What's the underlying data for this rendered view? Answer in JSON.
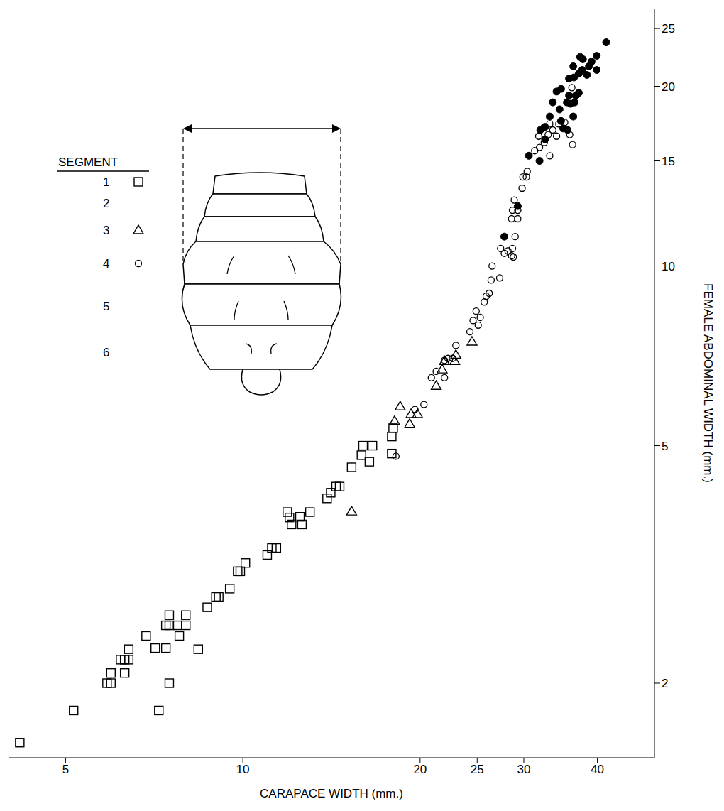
{
  "chart_data": {
    "type": "scatter",
    "log": true,
    "xlabel": "CARAPACE WIDTH (mm.)",
    "ylabel": "FEMALE ABDOMINAL WIDTH (mm.)",
    "xlim": [
      4,
      50
    ],
    "xticks": [
      5,
      10,
      20,
      25,
      30,
      40
    ],
    "ylim": [
      1.5,
      27
    ],
    "yticks": [
      2,
      5,
      10,
      15,
      20,
      25
    ],
    "grid": false,
    "inset": {
      "title": "SEGMENT",
      "segments": [
        "1",
        "2",
        "3",
        "4",
        "5",
        "6"
      ]
    },
    "series": [
      {
        "name": "1",
        "marker": "open_square",
        "color": "#000000",
        "x": [
          4.18,
          5.16,
          5.88,
          5.97,
          5.97,
          6.2,
          6.3,
          6.4,
          6.3,
          6.4,
          6.85,
          7.1,
          7.4,
          7.2,
          7.5,
          7.4,
          7.5,
          7.75,
          8.0,
          7.5,
          8.0,
          7.8,
          8.4,
          8.7,
          9.0,
          9.1,
          9.5,
          9.8,
          9.9,
          10.1,
          11.0,
          11.2,
          11.4,
          11.9,
          12.0,
          12.1,
          12.5,
          12.6,
          13.0,
          13.9,
          14.1,
          14.4,
          14.6,
          15.3,
          15.9,
          16.0,
          16.4,
          16.6,
          17.9,
          17.9,
          18.0
        ],
        "y": [
          1.59,
          1.8,
          2.0,
          2.0,
          2.08,
          2.19,
          2.19,
          2.19,
          2.08,
          2.28,
          2.4,
          2.29,
          2.29,
          1.8,
          2.0,
          2.5,
          2.5,
          2.5,
          2.5,
          2.6,
          2.6,
          2.4,
          2.28,
          2.68,
          2.79,
          2.79,
          2.88,
          3.08,
          3.08,
          3.18,
          3.28,
          3.37,
          3.37,
          3.87,
          3.79,
          3.69,
          3.8,
          3.69,
          3.87,
          4.08,
          4.17,
          4.27,
          4.27,
          4.6,
          4.82,
          5.0,
          4.7,
          5.0,
          4.85,
          5.18,
          5.35
        ]
      },
      {
        "name": "3",
        "marker": "open_triangle",
        "color": "#000000",
        "x": [
          15.3,
          18.5,
          18.1,
          19.2,
          19.3,
          19.8,
          21.8,
          22.0,
          21.3,
          22.9,
          23.0,
          24.5
        ],
        "y": [
          3.88,
          5.82,
          5.5,
          5.44,
          5.65,
          5.65,
          6.71,
          6.93,
          6.3,
          6.93,
          7.1,
          7.47
        ]
      },
      {
        "name": "4",
        "marker": "open_circle",
        "color": "#000000",
        "x": [
          18.2,
          19.6,
          20.3,
          20.9,
          21.3,
          22.0,
          22.3,
          22.7,
          22.0,
          23.0,
          24.3,
          24.6,
          24.9,
          25.3,
          25.1,
          25.7,
          25.9,
          26.2,
          26.4,
          26.5,
          27.3,
          27.4,
          27.8,
          28.2,
          28.6,
          28.8,
          28.7,
          29.0,
          28.6,
          28.7,
          29.3,
          29.3,
          28.9,
          29.8,
          29.9,
          30.3,
          30.4,
          31.3,
          31.9,
          32.5,
          33.0,
          32.5,
          33.2,
          33.6,
          34.1,
          34.4,
          35.2,
          35.9,
          36.3,
          36.7,
          36.2,
          31.8,
          33.2
        ],
        "y": [
          4.8,
          5.75,
          5.86,
          6.5,
          6.66,
          6.95,
          7.0,
          7.0,
          6.5,
          7.36,
          7.76,
          8.1,
          8.4,
          8.2,
          7.96,
          8.7,
          8.9,
          9.0,
          9.47,
          10.0,
          9.55,
          10.7,
          10.5,
          10.6,
          10.4,
          10.35,
          10.7,
          11.2,
          12.0,
          12.4,
          12.0,
          12.4,
          12.9,
          13.5,
          14.1,
          14.1,
          14.4,
          15.6,
          15.8,
          16.1,
          16.6,
          17.1,
          17.3,
          16.9,
          16.5,
          17.3,
          17.4,
          16.6,
          15.97,
          19.3,
          19.9,
          16.5,
          15.3
        ]
      },
      {
        "marker": "filled_circle",
        "color": "#000000",
        "x": [
          27.8,
          29.3,
          30.6,
          31.9,
          32.0,
          32.6,
          33.2,
          32.6,
          33.6,
          34.5,
          34.7,
          35.0,
          35.6,
          35.5,
          35.8,
          36.0,
          36.4,
          36.6,
          36.8,
          37.2,
          35.8,
          36.5,
          37.2,
          37.7,
          38.4,
          38.7,
          36.4,
          37.4,
          37.8,
          39.1,
          39.9,
          41.4,
          39.9,
          34.1,
          34.7
        ],
        "y": [
          11.2,
          12.6,
          15.3,
          15.0,
          16.9,
          17.1,
          17.8,
          16.3,
          18.8,
          18.3,
          17.5,
          17.0,
          16.9,
          18.8,
          19.3,
          18.7,
          17.8,
          18.8,
          19.3,
          19.5,
          20.6,
          20.7,
          21.0,
          21.3,
          20.9,
          21.6,
          21.6,
          22.4,
          22.2,
          22.0,
          21.3,
          23.7,
          22.5,
          19.6,
          19.8
        ]
      }
    ]
  }
}
